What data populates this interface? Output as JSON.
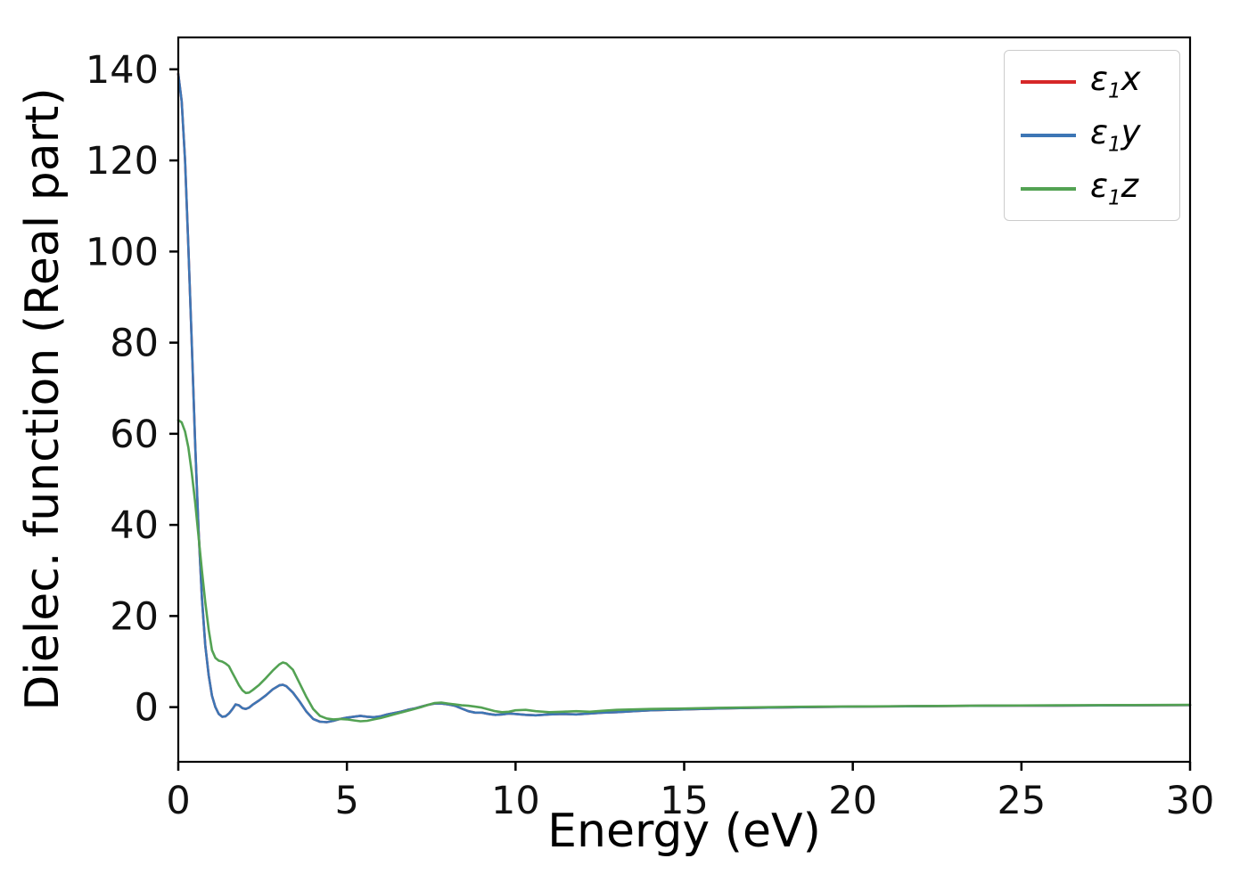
{
  "figure": {
    "background": "#ffffff"
  },
  "chart_data": {
    "type": "line",
    "title": "",
    "xlabel": "Energy (eV)",
    "ylabel": "Dielec. function (Real part)",
    "xlim": [
      0,
      30
    ],
    "ylim": [
      -12,
      147
    ],
    "xticks": [
      0,
      5,
      10,
      15,
      20,
      25,
      30
    ],
    "yticks": [
      0,
      20,
      40,
      60,
      80,
      100,
      120,
      140
    ],
    "grid": false,
    "legend": {
      "position": "upper right",
      "border_color": "#cccccc"
    },
    "x": [
      0,
      0.1,
      0.2,
      0.3,
      0.4,
      0.5,
      0.6,
      0.7,
      0.8,
      0.9,
      1.0,
      1.1,
      1.2,
      1.3,
      1.4,
      1.5,
      1.6,
      1.7,
      1.8,
      1.9,
      2.0,
      2.1,
      2.2,
      2.4,
      2.6,
      2.8,
      3.0,
      3.1,
      3.2,
      3.4,
      3.6,
      3.8,
      4.0,
      4.2,
      4.4,
      4.6,
      4.8,
      5.0,
      5.2,
      5.4,
      5.6,
      5.8,
      6.0,
      6.2,
      6.4,
      6.6,
      6.8,
      7.0,
      7.2,
      7.4,
      7.6,
      7.8,
      8.0,
      8.2,
      8.4,
      8.6,
      8.8,
      9.0,
      9.2,
      9.4,
      9.6,
      9.8,
      10.0,
      10.3,
      10.6,
      11.0,
      11.4,
      11.8,
      12.2,
      12.6,
      13.0,
      13.5,
      14.0,
      14.5,
      15,
      16,
      17,
      18,
      19,
      20,
      22,
      24,
      26,
      28,
      30
    ],
    "series": [
      {
        "name": "eps1x",
        "label": {
          "symbol": "ε",
          "subscript": "1",
          "suffix": "x"
        },
        "color": "#d62728",
        "values": [
          139,
          133,
          120,
          101,
          80,
          58,
          39,
          24,
          13.5,
          7,
          2.5,
          0,
          -1.5,
          -2.1,
          -2.0,
          -1.4,
          -0.5,
          0.6,
          0.4,
          -0.2,
          -0.4,
          -0.1,
          0.5,
          1.5,
          2.6,
          3.9,
          4.8,
          4.9,
          4.6,
          3.2,
          1.2,
          -1.0,
          -2.6,
          -3.2,
          -3.3,
          -3.0,
          -2.6,
          -2.3,
          -2.1,
          -1.9,
          -2.1,
          -2.2,
          -2.0,
          -1.6,
          -1.3,
          -1.0,
          -0.6,
          -0.3,
          0.1,
          0.5,
          0.8,
          0.8,
          0.6,
          0.3,
          -0.3,
          -0.9,
          -1.2,
          -1.2,
          -1.5,
          -1.7,
          -1.6,
          -1.4,
          -1.5,
          -1.7,
          -1.8,
          -1.6,
          -1.5,
          -1.6,
          -1.4,
          -1.2,
          -1.1,
          -0.9,
          -0.7,
          -0.6,
          -0.5,
          -0.3,
          -0.15,
          -0.05,
          0.05,
          0.1,
          0.2,
          0.3,
          0.35,
          0.4,
          0.45
        ]
      },
      {
        "name": "eps1y",
        "label": {
          "symbol": "ε",
          "subscript": "1",
          "suffix": "y"
        },
        "color": "#3d76b5",
        "values": [
          139,
          133,
          120,
          101,
          80,
          58,
          39,
          24,
          13.5,
          7,
          2.5,
          0,
          -1.5,
          -2.1,
          -2.0,
          -1.4,
          -0.5,
          0.6,
          0.4,
          -0.2,
          -0.4,
          -0.1,
          0.5,
          1.5,
          2.6,
          3.9,
          4.8,
          4.9,
          4.6,
          3.2,
          1.2,
          -1.0,
          -2.6,
          -3.2,
          -3.3,
          -3.0,
          -2.6,
          -2.3,
          -2.1,
          -1.9,
          -2.1,
          -2.2,
          -2.0,
          -1.6,
          -1.3,
          -1.0,
          -0.6,
          -0.3,
          0.1,
          0.5,
          0.8,
          0.8,
          0.6,
          0.3,
          -0.3,
          -0.9,
          -1.2,
          -1.2,
          -1.5,
          -1.7,
          -1.6,
          -1.4,
          -1.5,
          -1.7,
          -1.8,
          -1.6,
          -1.5,
          -1.6,
          -1.4,
          -1.2,
          -1.1,
          -0.9,
          -0.7,
          -0.6,
          -0.5,
          -0.3,
          -0.15,
          -0.05,
          0.05,
          0.1,
          0.2,
          0.3,
          0.35,
          0.4,
          0.45
        ]
      },
      {
        "name": "eps1z",
        "label": {
          "symbol": "ε",
          "subscript": "1",
          "suffix": "z"
        },
        "color": "#53a253",
        "values": [
          63,
          62.5,
          60.5,
          57,
          51.5,
          45,
          37.5,
          30,
          23,
          17,
          12.5,
          10.8,
          10.2,
          10.0,
          9.6,
          9.0,
          7.6,
          6.2,
          4.8,
          3.7,
          3.1,
          3.2,
          3.7,
          4.9,
          6.4,
          8.0,
          9.4,
          9.8,
          9.6,
          8.2,
          5.2,
          2.2,
          -0.4,
          -1.9,
          -2.5,
          -2.7,
          -2.6,
          -2.7,
          -2.9,
          -3.1,
          -3.0,
          -2.7,
          -2.4,
          -2.0,
          -1.6,
          -1.2,
          -0.8,
          -0.4,
          0.0,
          0.5,
          0.9,
          1.0,
          0.8,
          0.6,
          0.4,
          0.3,
          0.1,
          -0.1,
          -0.5,
          -0.9,
          -1.1,
          -1.0,
          -0.7,
          -0.6,
          -0.9,
          -1.1,
          -1.0,
          -0.9,
          -1.0,
          -0.8,
          -0.6,
          -0.5,
          -0.4,
          -0.35,
          -0.3,
          -0.15,
          -0.05,
          0.05,
          0.1,
          0.15,
          0.25,
          0.35,
          0.4,
          0.45,
          0.5
        ]
      }
    ]
  }
}
